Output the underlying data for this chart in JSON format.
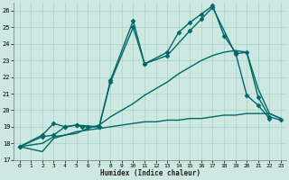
{
  "xlabel": "Humidex (Indice chaleur)",
  "xlim": [
    -0.5,
    23.5
  ],
  "ylim": [
    17,
    26.5
  ],
  "yticks": [
    17,
    18,
    19,
    20,
    21,
    22,
    23,
    24,
    25,
    26
  ],
  "xticks": [
    0,
    1,
    2,
    3,
    4,
    5,
    6,
    7,
    8,
    9,
    10,
    11,
    12,
    13,
    14,
    15,
    16,
    17,
    18,
    19,
    20,
    21,
    22,
    23
  ],
  "bg_color": "#cce8e0",
  "grid_color": "#aad0c8",
  "line_color": "#006868",
  "series": [
    {
      "x": [
        0,
        2,
        3,
        4,
        5,
        5.5,
        6,
        7,
        8,
        10,
        11,
        13,
        14,
        15,
        16,
        17,
        18,
        19,
        20,
        21,
        22
      ],
      "y": [
        17.8,
        18.5,
        19.2,
        19.0,
        19.1,
        19.0,
        19.0,
        19.0,
        21.8,
        25.4,
        22.8,
        23.5,
        24.7,
        25.3,
        25.8,
        26.3,
        24.5,
        23.5,
        20.9,
        20.3,
        19.5
      ],
      "marker": "D",
      "markersize": 2.5,
      "linewidth": 1.0
    },
    {
      "x": [
        0,
        2,
        3,
        4,
        5,
        7,
        8,
        10,
        11,
        13,
        15,
        16,
        17,
        19,
        20,
        21,
        22,
        23
      ],
      "y": [
        17.8,
        18.4,
        18.5,
        19.0,
        19.1,
        19.0,
        21.7,
        25.0,
        22.8,
        23.3,
        24.8,
        25.5,
        26.2,
        23.4,
        23.5,
        20.8,
        19.6,
        19.4
      ],
      "marker": "D",
      "markersize": 2.5,
      "linewidth": 1.0
    },
    {
      "x": [
        0,
        2,
        3,
        4,
        5,
        6,
        7,
        8,
        9,
        10,
        11,
        12,
        13,
        14,
        15,
        16,
        17,
        18,
        19,
        20,
        21,
        22,
        23
      ],
      "y": [
        17.8,
        18.0,
        18.4,
        18.5,
        18.7,
        18.8,
        18.9,
        19.0,
        19.1,
        19.2,
        19.3,
        19.3,
        19.4,
        19.4,
        19.5,
        19.5,
        19.6,
        19.7,
        19.7,
        19.8,
        19.8,
        19.8,
        19.5
      ],
      "marker": null,
      "markersize": 0,
      "linewidth": 1.0
    },
    {
      "x": [
        0,
        2,
        3,
        4,
        5,
        6,
        7,
        8,
        9,
        10,
        11,
        12,
        13,
        14,
        15,
        16,
        17,
        18,
        19,
        20,
        21,
        22,
        23
      ],
      "y": [
        17.8,
        17.5,
        18.3,
        18.5,
        18.6,
        18.9,
        19.1,
        19.6,
        20.0,
        20.4,
        20.9,
        21.3,
        21.7,
        22.2,
        22.6,
        23.0,
        23.3,
        23.5,
        23.6,
        23.5,
        21.3,
        19.8,
        19.5
      ],
      "marker": null,
      "markersize": 0,
      "linewidth": 1.0
    }
  ]
}
